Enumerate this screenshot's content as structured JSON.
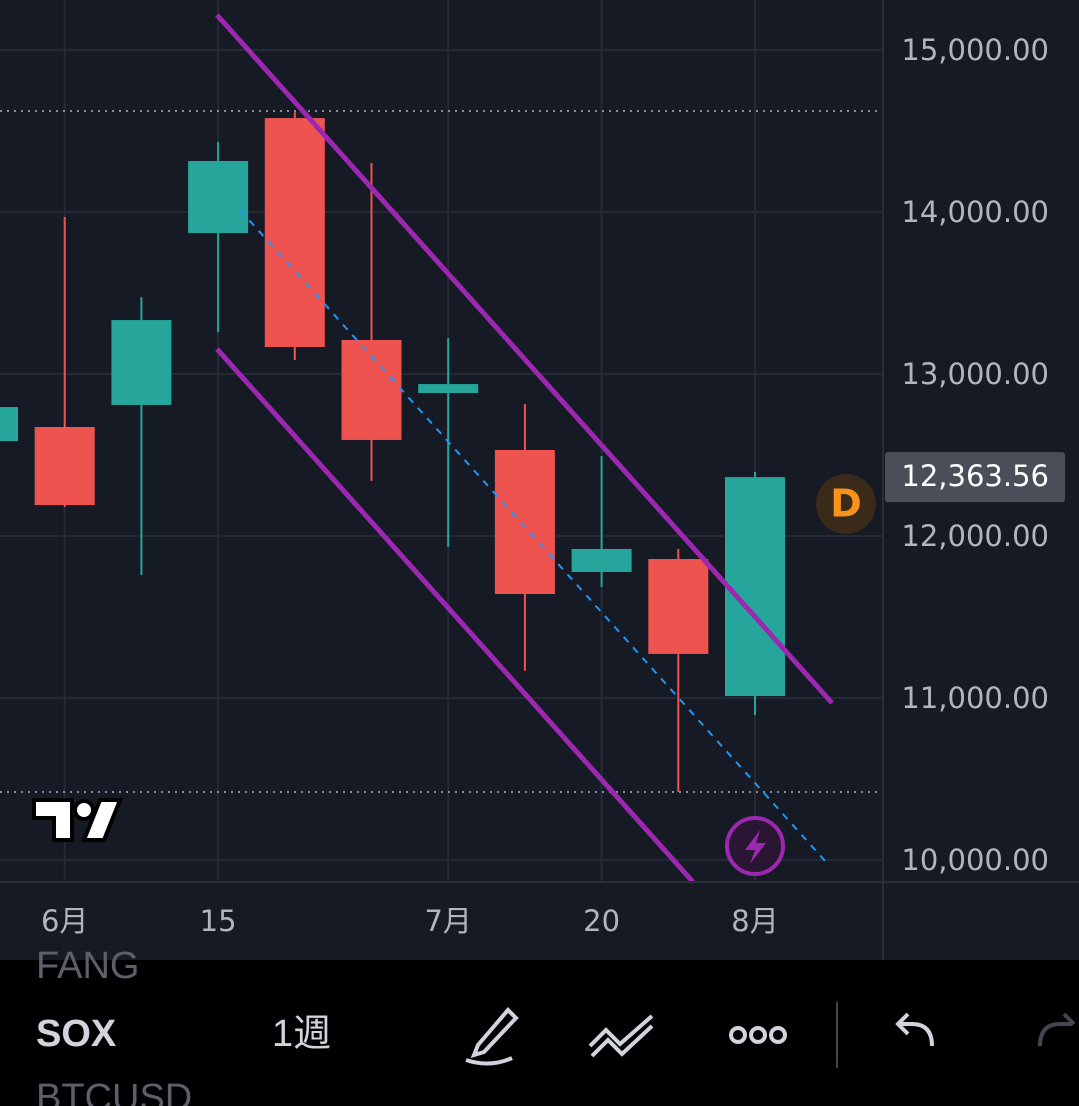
{
  "chart_data": {
    "type": "candlestick",
    "categories": [
      null,
      "6月",
      null,
      "15",
      null,
      null,
      "7月",
      null,
      "20",
      null,
      "8月"
    ],
    "open": [
      12586,
      12673,
      12809,
      13870,
      14580,
      13210,
      12883,
      12531,
      11778,
      11858,
      11012
    ],
    "high": [
      12850,
      13969,
      13475,
      14432,
      14617,
      14302,
      13222,
      12815,
      12494,
      11920,
      12395
    ],
    "low": [
      12560,
      12180,
      11759,
      13259,
      13086,
      12340,
      11932,
      11167,
      11685,
      10420,
      10895
    ],
    "close": [
      12796,
      12191,
      13333,
      14315,
      13167,
      12593,
      12938,
      11642,
      11920,
      11272,
      12363.56
    ],
    "up_color": "#26a69a",
    "down_color": "#ef5350",
    "ylim": [
      9864,
      15309
    ],
    "yticks": [
      {
        "value": 10000,
        "label": "10,000.00"
      },
      {
        "value": 11000,
        "label": "11,000.00"
      },
      {
        "value": 12000,
        "label": "12,000.00"
      },
      {
        "value": 13000,
        "label": "13,000.00"
      },
      {
        "value": 14000,
        "label": "14,000.00"
      },
      {
        "value": 15000,
        "label": "15,000.00"
      }
    ],
    "grid": true,
    "last_price": {
      "value": 12363.56,
      "label": "12,363.56"
    }
  },
  "badge": "D",
  "toolbar": {
    "symbols": [
      "FANG",
      "SOX",
      "BTCUSD"
    ],
    "interval": "1週"
  }
}
